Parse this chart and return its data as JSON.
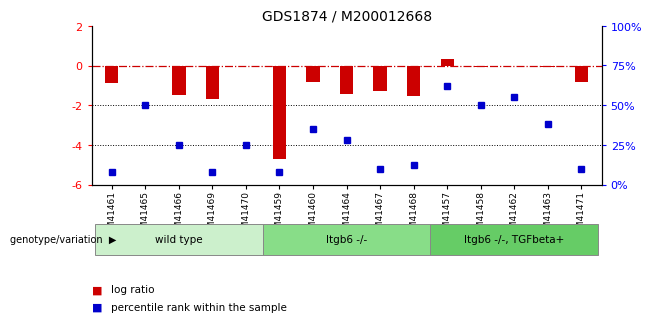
{
  "title": "GDS1874 / M200012668",
  "samples": [
    "GSM41461",
    "GSM41465",
    "GSM41466",
    "GSM41469",
    "GSM41470",
    "GSM41459",
    "GSM41460",
    "GSM41464",
    "GSM41467",
    "GSM41468",
    "GSM41457",
    "GSM41458",
    "GSM41462",
    "GSM41463",
    "GSM41471"
  ],
  "log_ratio": [
    -0.9,
    -0.05,
    -1.5,
    -1.7,
    -0.05,
    -4.7,
    -0.85,
    -1.45,
    -1.3,
    -1.55,
    0.35,
    -0.1,
    -0.05,
    -0.1,
    -0.85
  ],
  "percentile_rank": [
    8,
    50,
    25,
    8,
    25,
    8,
    35,
    28,
    10,
    12,
    62,
    50,
    55,
    38,
    10
  ],
  "groups": [
    {
      "label": "wild type",
      "start": 0,
      "end": 4,
      "color": "#ccf0cc"
    },
    {
      "label": "Itgb6 -/-",
      "start": 5,
      "end": 9,
      "color": "#88dd88"
    },
    {
      "label": "Itgb6 -/-, TGFbeta+",
      "start": 10,
      "end": 14,
      "color": "#66cc66"
    }
  ],
  "ylim_left": [
    -6,
    2
  ],
  "ylim_right": [
    0,
    100
  ],
  "yticks_left": [
    -6,
    -4,
    -2,
    0,
    2
  ],
  "yticks_right": [
    0,
    25,
    50,
    75,
    100
  ],
  "ytick_labels_right": [
    "0%",
    "25%",
    "50%",
    "75%",
    "100%"
  ],
  "dotted_lines": [
    -2,
    -4
  ],
  "bar_color": "#cc0000",
  "dot_color": "#0000cc",
  "hline_color": "#cc0000",
  "legend_bar_label": "log ratio",
  "legend_dot_label": "percentile rank within the sample",
  "genotype_label": "genotype/variation",
  "background_color": "#ffffff"
}
